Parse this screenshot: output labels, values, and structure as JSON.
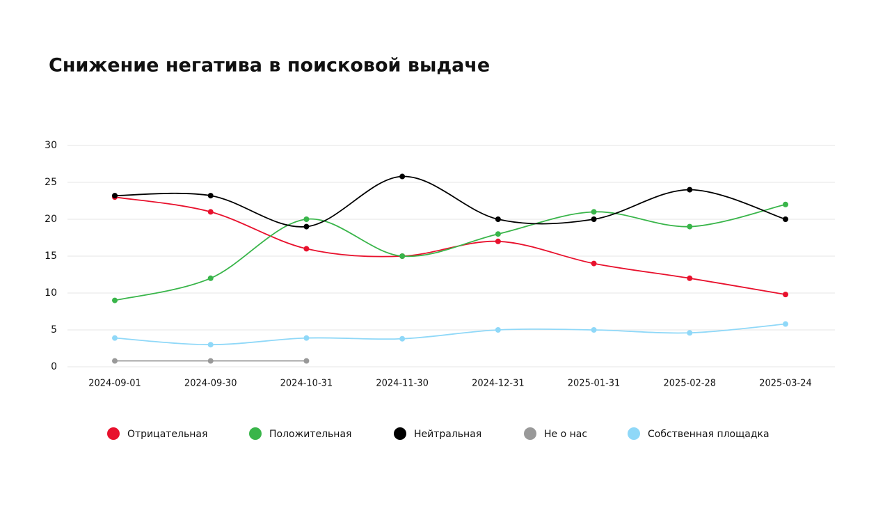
{
  "chart_data": {
    "type": "line",
    "title": "Снижение негатива в поисковой выдаче",
    "categories": [
      "2024-09-01",
      "2024-09-30",
      "2024-10-31",
      "2024-11-30",
      "2024-12-31",
      "2025-01-31",
      "2025-02-28",
      "2025-03-24"
    ],
    "series": [
      {
        "name": "Отрицательная",
        "color": "#e8112d",
        "values": [
          23,
          21,
          16,
          15,
          17,
          14,
          12,
          9.8
        ]
      },
      {
        "name": "Положительная",
        "color": "#39b54a",
        "values": [
          9,
          12,
          20,
          15,
          18,
          21,
          19,
          22
        ]
      },
      {
        "name": "Нейтральная",
        "color": "#000000",
        "values": [
          23.2,
          23.2,
          19,
          25.8,
          20,
          20,
          24,
          20
        ]
      },
      {
        "name": "Не о нас",
        "color": "#999999",
        "values": [
          0.8,
          0.8,
          0.8,
          null,
          null,
          null,
          null,
          null
        ]
      },
      {
        "name": "Собственная площадка",
        "color": "#8fd8f8",
        "values": [
          3.9,
          3,
          3.9,
          3.8,
          5,
          5,
          4.6,
          5.8
        ]
      }
    ],
    "ylim": [
      0,
      30
    ],
    "yticks": [
      0,
      5,
      10,
      15,
      20,
      25,
      30
    ],
    "grid": true
  }
}
